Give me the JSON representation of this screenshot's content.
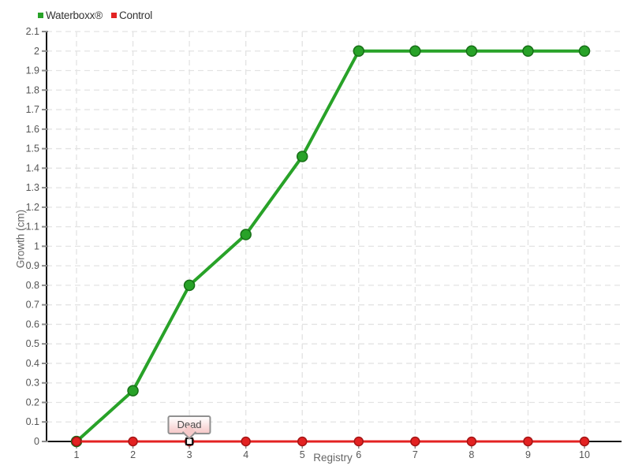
{
  "chart_data": {
    "type": "line",
    "title": "",
    "xlabel": "Registry",
    "ylabel": "Growth (cm)",
    "x": [
      1,
      2,
      3,
      4,
      5,
      6,
      7,
      8,
      9,
      10
    ],
    "series": [
      {
        "name": "Waterboxx®",
        "color": "#28a228",
        "edge_color": "#166e16",
        "line_width": 4,
        "marker": "circle",
        "marker_radius": 6.5,
        "values": [
          0,
          0.26,
          0.8,
          1.06,
          1.46,
          2,
          2,
          2,
          2,
          2
        ]
      },
      {
        "name": "Control",
        "color": "#e32222",
        "edge_color": "#a31414",
        "line_width": 3,
        "marker": "circle",
        "marker_radius": 5.5,
        "values": [
          0,
          0,
          0,
          0,
          0,
          0,
          0,
          0,
          0,
          0
        ]
      }
    ],
    "ylim": [
      0,
      2.1
    ],
    "y_tick_step": 0.1,
    "grid": true,
    "legend_position": "top-left",
    "annotation": {
      "text": "Dead",
      "series": "Control",
      "x": 3,
      "y": 0,
      "marker": "white-square-black-border"
    }
  },
  "colors": {
    "background": "#ffffff",
    "grid": "#e3e3e3",
    "axis": "#111111",
    "tick": "#8a8a8a",
    "tick_label": "#555555",
    "axis_label": "#666666",
    "legend_text": "#333333",
    "tooltip_border": "#909090",
    "tooltip_bg_top": "#ffffff",
    "tooltip_bg_bottom": "#f6c9c9"
  }
}
